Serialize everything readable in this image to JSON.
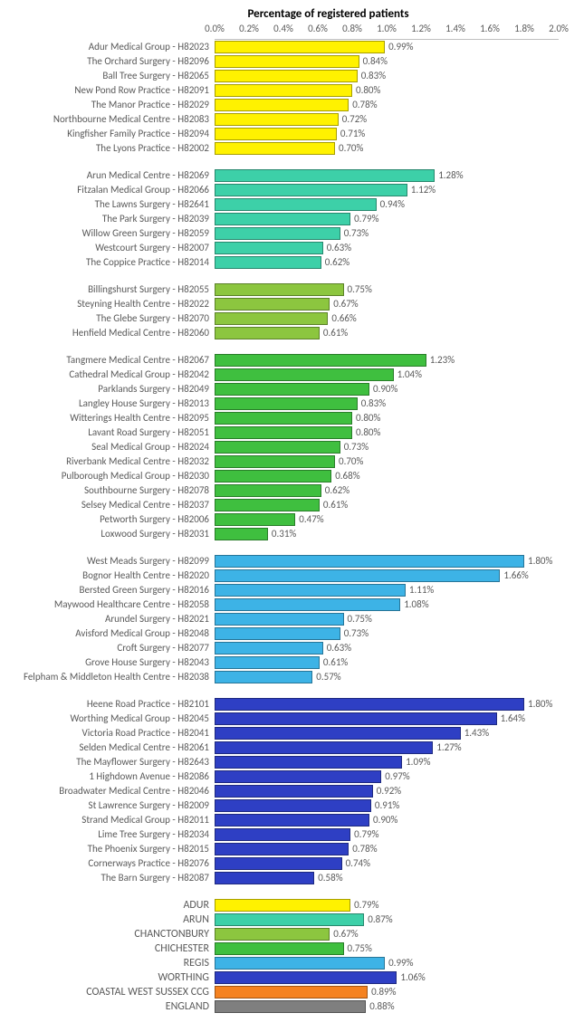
{
  "title": "Percentage of registered patients",
  "xaxis": {
    "min": 0.0,
    "max": 2.0,
    "tick_step": 0.2,
    "ticks": [
      "0.0%",
      "0.2%",
      "0.4%",
      "0.6%",
      "0.8%",
      "1.0%",
      "1.2%",
      "1.4%",
      "1.6%",
      "1.8%",
      "2.0%"
    ],
    "grid_color": "#bfbfbf"
  },
  "label_fontsize": 11,
  "title_fontsize": 13,
  "value_suffix": "%",
  "groups": [
    {
      "color": "#fff200",
      "rows": [
        {
          "label": "Adur Medical Group - H82023",
          "value": 0.99
        },
        {
          "label": "The Orchard Surgery - H82096",
          "value": 0.84
        },
        {
          "label": "Ball Tree Surgery - H82065",
          "value": 0.83
        },
        {
          "label": "New Pond Row Practice - H82091",
          "value": 0.8
        },
        {
          "label": "The Manor Practice - H82029",
          "value": 0.78
        },
        {
          "label": "Northbourne Medical Centre - H82083",
          "value": 0.72
        },
        {
          "label": "Kingfisher Family Practice - H82094",
          "value": 0.71
        },
        {
          "label": "The Lyons Practice - H82002",
          "value": 0.7
        }
      ]
    },
    {
      "color": "#3dd0a8",
      "rows": [
        {
          "label": "Arun Medical Centre - H82069",
          "value": 1.28
        },
        {
          "label": "Fitzalan Medical Group - H82066",
          "value": 1.12
        },
        {
          "label": "The Lawns Surgery - H82641",
          "value": 0.94
        },
        {
          "label": "The Park Surgery - H82039",
          "value": 0.79
        },
        {
          "label": "Willow Green Surgery - H82059",
          "value": 0.73
        },
        {
          "label": "Westcourt Surgery - H82007",
          "value": 0.63
        },
        {
          "label": "The Coppice Practice - H82014",
          "value": 0.62
        }
      ]
    },
    {
      "color": "#8cc63f",
      "rows": [
        {
          "label": "Billingshurst Surgery - H82055",
          "value": 0.75
        },
        {
          "label": "Steyning Health Centre - H82022",
          "value": 0.67
        },
        {
          "label": "The Glebe Surgery - H82070",
          "value": 0.66
        },
        {
          "label": "Henfield Medical Centre - H82060",
          "value": 0.61
        }
      ]
    },
    {
      "color": "#3fbf3f",
      "rows": [
        {
          "label": "Tangmere Medical Centre - H82067",
          "value": 1.23
        },
        {
          "label": "Cathedral Medical Group - H82042",
          "value": 1.04
        },
        {
          "label": "Parklands Surgery - H82049",
          "value": 0.9
        },
        {
          "label": "Langley House Surgery - H82013",
          "value": 0.83
        },
        {
          "label": "Witterings Health Centre - H82095",
          "value": 0.8
        },
        {
          "label": "Lavant Road Surgery - H82051",
          "value": 0.8
        },
        {
          "label": "Seal Medical Group - H82024",
          "value": 0.73
        },
        {
          "label": "Riverbank Medical Centre - H82032",
          "value": 0.7
        },
        {
          "label": "Pulborough Medical Group - H82030",
          "value": 0.68
        },
        {
          "label": "Southbourne Surgery - H82078",
          "value": 0.62
        },
        {
          "label": "Selsey Medical Centre - H82037",
          "value": 0.61
        },
        {
          "label": "Petworth Surgery - H82006",
          "value": 0.47
        },
        {
          "label": "Loxwood Surgery - H82031",
          "value": 0.31
        }
      ]
    },
    {
      "color": "#3db3e6",
      "rows": [
        {
          "label": "West Meads Surgery - H82099",
          "value": 1.8
        },
        {
          "label": "Bognor Health Centre - H82020",
          "value": 1.66
        },
        {
          "label": "Bersted Green Surgery - H82016",
          "value": 1.11
        },
        {
          "label": "Maywood Healthcare Centre - H82058",
          "value": 1.08
        },
        {
          "label": "Arundel Surgery - H82021",
          "value": 0.75
        },
        {
          "label": "Avisford Medical Group - H82048",
          "value": 0.73
        },
        {
          "label": "Croft Surgery - H82077",
          "value": 0.63
        },
        {
          "label": "Grove House Surgery - H82043",
          "value": 0.61
        },
        {
          "label": "Felpham & Middleton Health Centre - H82038",
          "value": 0.57
        }
      ]
    },
    {
      "color": "#2e3fc4",
      "rows": [
        {
          "label": "Heene Road Practice - H82101",
          "value": 1.8
        },
        {
          "label": "Worthing Medical Group - H82045",
          "value": 1.64
        },
        {
          "label": "Victoria Road Practice - H82041",
          "value": 1.43
        },
        {
          "label": "Selden Medical Centre - H82061",
          "value": 1.27
        },
        {
          "label": "The Mayflower Surgery - H82643",
          "value": 1.09
        },
        {
          "label": "1 Highdown Avenue - H82086",
          "value": 0.97
        },
        {
          "label": "Broadwater Medical Centre - H82046",
          "value": 0.92
        },
        {
          "label": "St Lawrence Surgery - H82009",
          "value": 0.91
        },
        {
          "label": "Strand Medical Group - H82011",
          "value": 0.9
        },
        {
          "label": "Lime Tree Surgery - H82034",
          "value": 0.79
        },
        {
          "label": "The Phoenix Surgery - H82015",
          "value": 0.78
        },
        {
          "label": "Cornerways Practice - H82076",
          "value": 0.74
        },
        {
          "label": "The Barn Surgery - H82087",
          "value": 0.58
        }
      ]
    }
  ],
  "summary": [
    {
      "label": "ADUR",
      "value": 0.79,
      "color": "#fff200"
    },
    {
      "label": "ARUN",
      "value": 0.87,
      "color": "#3dd0a8"
    },
    {
      "label": "CHANCTONBURY",
      "value": 0.67,
      "color": "#8cc63f"
    },
    {
      "label": "CHICHESTER",
      "value": 0.75,
      "color": "#3fbf3f"
    },
    {
      "label": "REGIS",
      "value": 0.99,
      "color": "#3db3e6"
    },
    {
      "label": "WORTHING",
      "value": 1.06,
      "color": "#2e3fc4"
    },
    {
      "label": "COASTAL WEST SUSSEX CCG",
      "value": 0.89,
      "color": "#f58220"
    },
    {
      "label": "ENGLAND",
      "value": 0.88,
      "color": "#7f7f7f"
    }
  ]
}
